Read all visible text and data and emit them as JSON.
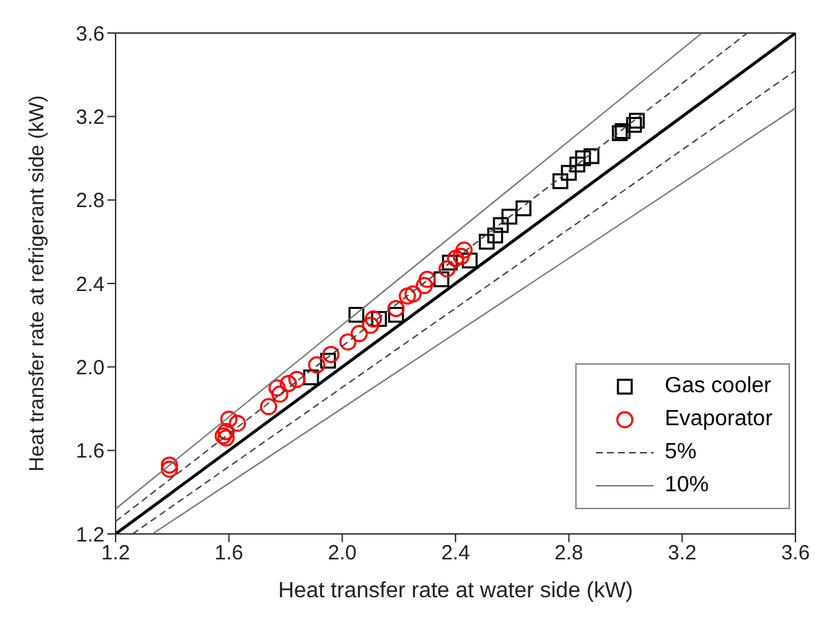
{
  "chart_data": {
    "type": "scatter",
    "xlabel": "Heat transfer rate at water side (kW)",
    "ylabel": "Heat transfer rate at refrigerant side (kW)",
    "xlim": [
      1.2,
      3.6
    ],
    "ylim": [
      1.2,
      3.6
    ],
    "xticks": [
      1.2,
      1.6,
      {
        "value": 2,
        "label": "2.0"
      },
      2.4,
      2.8,
      3.2,
      3.6
    ],
    "yticks": [
      1.2,
      1.6,
      {
        "value": 2,
        "label": "2.0"
      },
      2.4,
      2.8,
      3.2,
      3.6
    ],
    "grid": false,
    "legend": "bottom right",
    "series": [
      {
        "name": "Gas cooler",
        "color": "#000000",
        "marker": "square",
        "x": [
          1.89,
          1.95,
          2.05,
          2.13,
          2.19,
          2.35,
          2.38,
          2.45,
          2.51,
          2.54,
          2.56,
          2.59,
          2.64,
          2.77,
          2.8,
          2.83,
          2.85,
          2.88,
          2.98,
          2.99,
          3.03,
          3.04
        ],
        "values": [
          1.95,
          2.03,
          2.25,
          2.23,
          2.25,
          2.42,
          2.5,
          2.51,
          2.6,
          2.63,
          2.68,
          2.72,
          2.76,
          2.89,
          2.93,
          2.97,
          3.0,
          3.01,
          3.12,
          3.13,
          3.16,
          3.18
        ]
      },
      {
        "name": "Evaporator",
        "color": "#ff0000",
        "marker": "circle",
        "x": [
          1.39,
          1.39,
          1.59,
          1.58,
          1.6,
          1.63,
          1.59,
          1.74,
          1.77,
          1.78,
          1.81,
          1.84,
          1.91,
          1.96,
          2.02,
          2.06,
          2.1,
          2.11,
          2.19,
          2.23,
          2.25,
          2.29,
          2.3,
          2.37,
          2.4,
          2.42,
          2.43
        ],
        "values": [
          1.53,
          1.51,
          1.69,
          1.67,
          1.75,
          1.73,
          1.66,
          1.81,
          1.9,
          1.87,
          1.92,
          1.94,
          2.01,
          2.06,
          2.12,
          2.16,
          2.2,
          2.23,
          2.28,
          2.34,
          2.35,
          2.39,
          2.42,
          2.47,
          2.52,
          2.53,
          2.56
        ]
      },
      {
        "type": "line",
        "color": "#000000",
        "line_style": "solid",
        "marker": "none",
        "x": [
          1.2,
          3.6
        ],
        "values": [
          1.2,
          3.6
        ]
      },
      {
        "name": "5%",
        "type": "line",
        "color": "#444444",
        "line_style": "dashed",
        "marker": "none",
        "x": [
          1.2,
          3.43
        ],
        "values": [
          1.26,
          3.6
        ]
      },
      {
        "type": "line",
        "color": "#444444",
        "line_style": "dashed",
        "marker": "none",
        "x": [
          1.26,
          3.6
        ],
        "values": [
          1.2,
          3.42
        ]
      },
      {
        "name": "10%",
        "type": "line",
        "color": "#777777",
        "line_style": "solid",
        "marker": "none",
        "x": [
          1.2,
          3.27
        ],
        "values": [
          1.32,
          3.6
        ]
      },
      {
        "type": "line",
        "color": "#777777",
        "line_style": "solid",
        "marker": "none",
        "x": [
          1.33,
          3.6
        ],
        "values": [
          1.2,
          3.24
        ]
      }
    ]
  }
}
